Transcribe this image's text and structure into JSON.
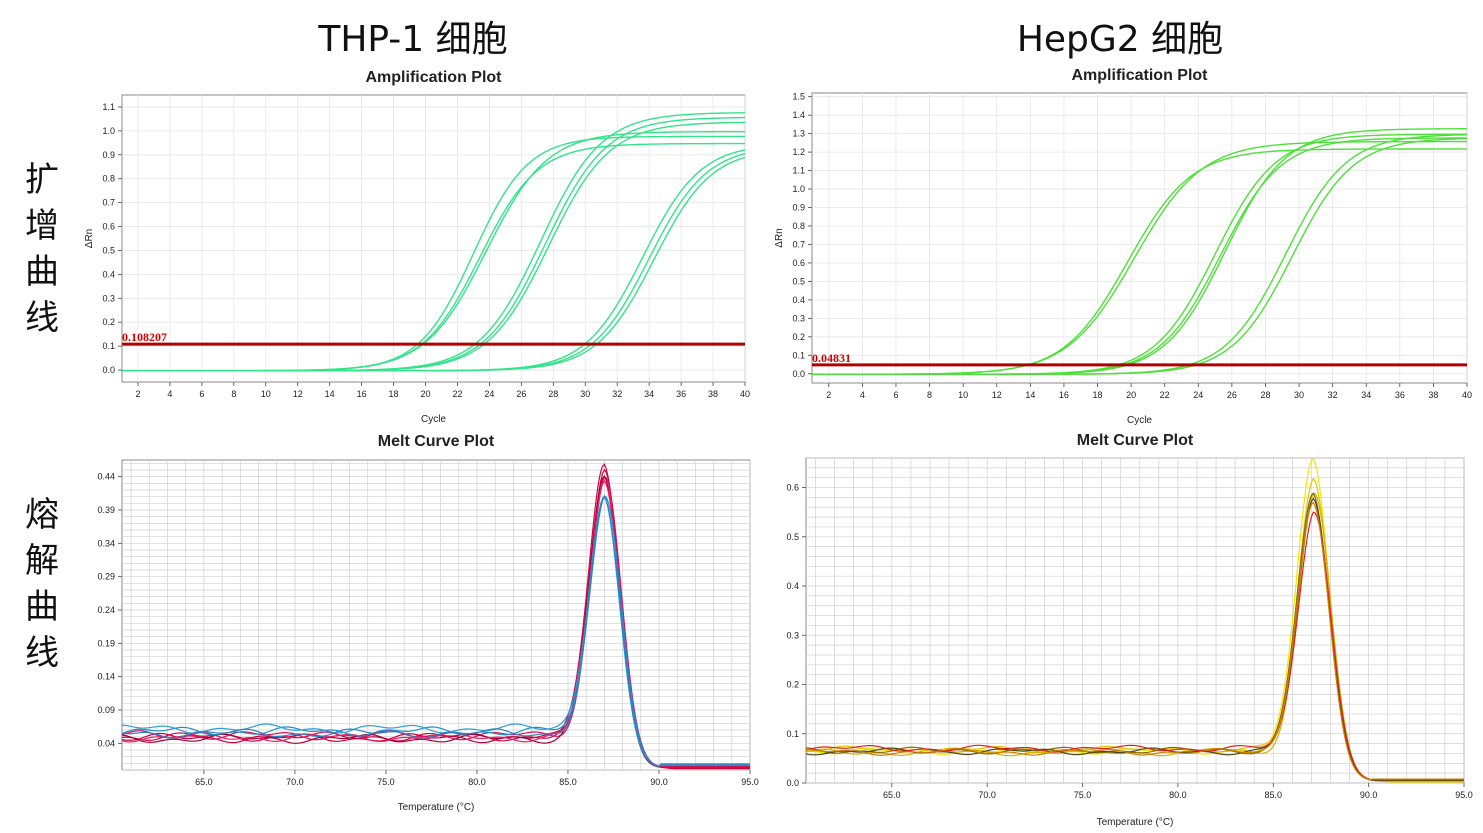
{
  "column_titles": [
    "THP-1 细胞",
    "HepG2 细胞"
  ],
  "row_labels": [
    [
      "扩",
      "增",
      "曲",
      "线"
    ],
    [
      "熔",
      "解",
      "曲",
      "线"
    ]
  ],
  "chart_data": [
    {
      "id": "thp1-amp",
      "type": "line",
      "title": "Amplification Plot",
      "xlabel": "Cycle",
      "ylabel": "ΔRn",
      "xlim": [
        1,
        40
      ],
      "ylim": [
        -0.05,
        1.15
      ],
      "xticks": [
        "2",
        "4",
        "6",
        "8",
        "10",
        "12",
        "14",
        "16",
        "18",
        "20",
        "22",
        "24",
        "26",
        "28",
        "30",
        "32",
        "34",
        "36",
        "38",
        "40"
      ],
      "yticks": [
        "0.0",
        "0.1",
        "0.2",
        "0.3",
        "0.4",
        "0.5",
        "0.6",
        "0.7",
        "0.8",
        "0.9",
        "1.0",
        "1.1"
      ],
      "grid": true,
      "threshold": {
        "label": "0.108207",
        "value": 0.108207,
        "color": "#b10000"
      },
      "curve_color": "#33e38a",
      "series": [
        {
          "plateau": 0.98,
          "midpoint": 23.0,
          "slope": 1.7
        },
        {
          "plateau": 0.95,
          "midpoint": 23.4,
          "slope": 1.8
        },
        {
          "plateau": 1.0,
          "midpoint": 23.8,
          "slope": 1.9
        },
        {
          "plateau": 1.08,
          "midpoint": 27.2,
          "slope": 1.9
        },
        {
          "plateau": 1.06,
          "midpoint": 27.5,
          "slope": 1.9
        },
        {
          "plateau": 1.04,
          "midpoint": 27.7,
          "slope": 1.9
        },
        {
          "plateau": 0.95,
          "midpoint": 33.6,
          "slope": 1.8
        },
        {
          "plateau": 0.94,
          "midpoint": 34.0,
          "slope": 1.8
        },
        {
          "plateau": 0.93,
          "midpoint": 34.3,
          "slope": 1.8
        }
      ]
    },
    {
      "id": "hepg2-amp",
      "type": "line",
      "title": "Amplification Plot",
      "xlabel": "Cycle",
      "ylabel": "ΔRn",
      "xlim": [
        1,
        40
      ],
      "ylim": [
        -0.05,
        1.52
      ],
      "xticks": [
        "2",
        "4",
        "6",
        "8",
        "10",
        "12",
        "14",
        "16",
        "18",
        "20",
        "22",
        "24",
        "26",
        "28",
        "30",
        "32",
        "34",
        "36",
        "38",
        "40"
      ],
      "yticks": [
        "0.0",
        "0.1",
        "0.2",
        "0.3",
        "0.4",
        "0.5",
        "0.6",
        "0.7",
        "0.8",
        "0.9",
        "1.0",
        "1.1",
        "1.2",
        "1.3",
        "1.4",
        "1.5"
      ],
      "grid": true,
      "threshold": {
        "label": "0.04831",
        "value": 0.04831,
        "color": "#b10000"
      },
      "curve_color": "#4ee03a",
      "series": [
        {
          "plateau": 1.22,
          "midpoint": 19.8,
          "slope": 1.9
        },
        {
          "plateau": 1.26,
          "midpoint": 20.2,
          "slope": 2.0
        },
        {
          "plateau": 1.3,
          "midpoint": 25.0,
          "slope": 1.8
        },
        {
          "plateau": 1.28,
          "midpoint": 25.3,
          "slope": 1.8
        },
        {
          "plateau": 1.33,
          "midpoint": 25.6,
          "slope": 1.8
        },
        {
          "plateau": 1.3,
          "midpoint": 29.2,
          "slope": 1.8
        },
        {
          "plateau": 1.28,
          "midpoint": 29.6,
          "slope": 1.8
        }
      ]
    },
    {
      "id": "thp1-melt",
      "type": "line",
      "title": "Melt Curve Plot",
      "xlabel": "Temperature (°C)",
      "ylabel": "",
      "xlim": [
        60.5,
        95.0
      ],
      "ylim": [
        0.0,
        0.465
      ],
      "xticks": [
        "65.0",
        "70.0",
        "75.0",
        "80.0",
        "85.0",
        "90.0",
        "95.0"
      ],
      "yticks": [
        "0.04",
        "0.09",
        "0.14",
        "0.19",
        "0.24",
        "0.29",
        "0.34",
        "0.39",
        "0.44"
      ],
      "grid": true,
      "peak_temperature": 87.0,
      "series": [
        {
          "color": "#d6004a",
          "peak": 0.46,
          "baseline": 0.05
        },
        {
          "color": "#c8003a",
          "peak": 0.452,
          "baseline": 0.048
        },
        {
          "color": "#e0105a",
          "peak": 0.445,
          "baseline": 0.052
        },
        {
          "color": "#a00030",
          "peak": 0.438,
          "baseline": 0.047
        },
        {
          "color": "#e8206a",
          "peak": 0.43,
          "baseline": 0.049
        },
        {
          "color": "#1e90c8",
          "peak": 0.42,
          "baseline": 0.058
        },
        {
          "color": "#2aa0d8",
          "peak": 0.412,
          "baseline": 0.062
        },
        {
          "color": "#3080c0",
          "peak": 0.405,
          "baseline": 0.055
        }
      ]
    },
    {
      "id": "hepg2-melt",
      "type": "line",
      "title": "Melt Curve Plot",
      "xlabel": "Temperature (°C)",
      "ylabel": "",
      "xlim": [
        60.5,
        95.0
      ],
      "ylim": [
        0.0,
        0.66
      ],
      "xticks": [
        "65.0",
        "70.0",
        "75.0",
        "80.0",
        "85.0",
        "90.0",
        "95.0"
      ],
      "yticks": [
        "0.0",
        "0.1",
        "0.2",
        "0.3",
        "0.4",
        "0.5",
        "0.6"
      ],
      "grid": true,
      "peak_temperature": 87.1,
      "series": [
        {
          "color": "#f2e600",
          "peak": 0.66,
          "baseline": 0.065
        },
        {
          "color": "#e0c800",
          "peak": 0.62,
          "baseline": 0.068
        },
        {
          "color": "#d4b000",
          "peak": 0.595,
          "baseline": 0.062
        },
        {
          "color": "#8a6a00",
          "peak": 0.585,
          "baseline": 0.066
        },
        {
          "color": "#4a4a20",
          "peak": 0.575,
          "baseline": 0.064
        },
        {
          "color": "#e02020",
          "peak": 0.56,
          "baseline": 0.07
        },
        {
          "color": "#c88000",
          "peak": 0.57,
          "baseline": 0.063
        }
      ]
    }
  ]
}
